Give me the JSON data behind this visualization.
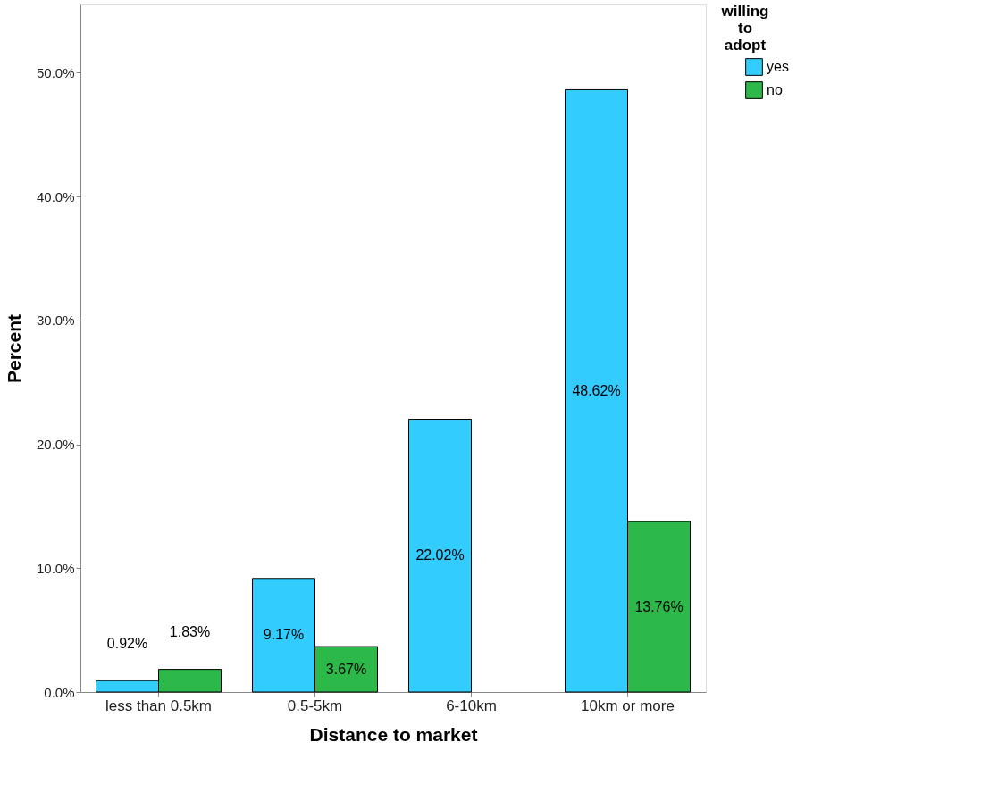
{
  "chart_data": {
    "type": "bar",
    "xlabel": "Distance to market",
    "ylabel": "Percent",
    "legend_title": "willing to adopt",
    "categories": [
      "less than 0.5km",
      "0.5-5km",
      "6-10km",
      "10km or more"
    ],
    "series": [
      {
        "name": "yes",
        "color": "#33ccff",
        "values": [
          0.92,
          9.17,
          22.02,
          48.62
        ],
        "value_labels": [
          "0.92%",
          "9.17%",
          "22.02%",
          "48.62%"
        ]
      },
      {
        "name": "no",
        "color": "#2db84a",
        "values": [
          1.83,
          3.67,
          null,
          13.76
        ],
        "value_labels": [
          "1.83%",
          "3.67%",
          null,
          "13.76%"
        ]
      }
    ],
    "ylim": [
      0,
      55.5
    ],
    "yticks": [
      {
        "value": 0,
        "label": "0.0%"
      },
      {
        "value": 10,
        "label": "10.0%"
      },
      {
        "value": 20,
        "label": "20.0%"
      },
      {
        "value": 30,
        "label": "30.0%"
      },
      {
        "value": 40,
        "label": "40.0%"
      },
      {
        "value": 50,
        "label": "50.0%"
      }
    ],
    "grid": false,
    "legend": "top right"
  }
}
